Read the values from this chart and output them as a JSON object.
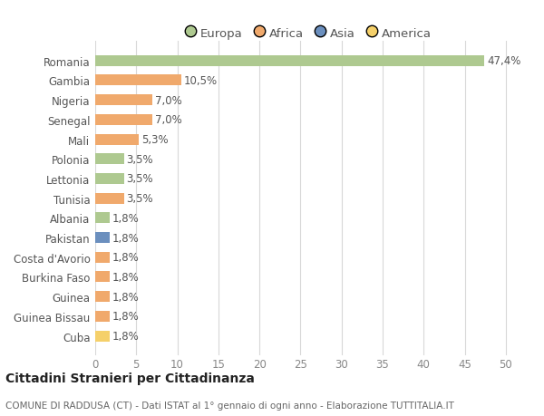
{
  "categories": [
    "Romania",
    "Gambia",
    "Nigeria",
    "Senegal",
    "Mali",
    "Polonia",
    "Lettonia",
    "Tunisia",
    "Albania",
    "Pakistan",
    "Costa d'Avorio",
    "Burkina Faso",
    "Guinea",
    "Guinea Bissau",
    "Cuba"
  ],
  "values": [
    47.4,
    10.5,
    7.0,
    7.0,
    5.3,
    3.5,
    3.5,
    3.5,
    1.8,
    1.8,
    1.8,
    1.8,
    1.8,
    1.8,
    1.8
  ],
  "labels": [
    "47,4%",
    "10,5%",
    "7,0%",
    "7,0%",
    "5,3%",
    "3,5%",
    "3,5%",
    "3,5%",
    "1,8%",
    "1,8%",
    "1,8%",
    "1,8%",
    "1,8%",
    "1,8%",
    "1,8%"
  ],
  "colors": [
    "#aec990",
    "#f0a96c",
    "#f0a96c",
    "#f0a96c",
    "#f0a96c",
    "#aec990",
    "#aec990",
    "#f0a96c",
    "#aec990",
    "#6b8fbe",
    "#f0a96c",
    "#f0a96c",
    "#f0a96c",
    "#f0a96c",
    "#f5d06a"
  ],
  "legend_labels": [
    "Europa",
    "Africa",
    "Asia",
    "America"
  ],
  "legend_colors": [
    "#aec990",
    "#f0a96c",
    "#6b8fbe",
    "#f5d06a"
  ],
  "title": "Cittadini Stranieri per Cittadinanza",
  "subtitle": "COMUNE DI RADDUSA (CT) - Dati ISTAT al 1° gennaio di ogni anno - Elaborazione TUTTITALIA.IT",
  "xlim": [
    0,
    52
  ],
  "xticks": [
    0,
    5,
    10,
    15,
    20,
    25,
    30,
    35,
    40,
    45,
    50
  ],
  "background_color": "#ffffff",
  "grid_color": "#d8d8d8",
  "bar_height": 0.55,
  "label_fontsize": 8.5,
  "ytick_fontsize": 8.5,
  "xtick_fontsize": 8.5,
  "legend_fontsize": 9.5,
  "title_fontsize": 10,
  "subtitle_fontsize": 7.5
}
